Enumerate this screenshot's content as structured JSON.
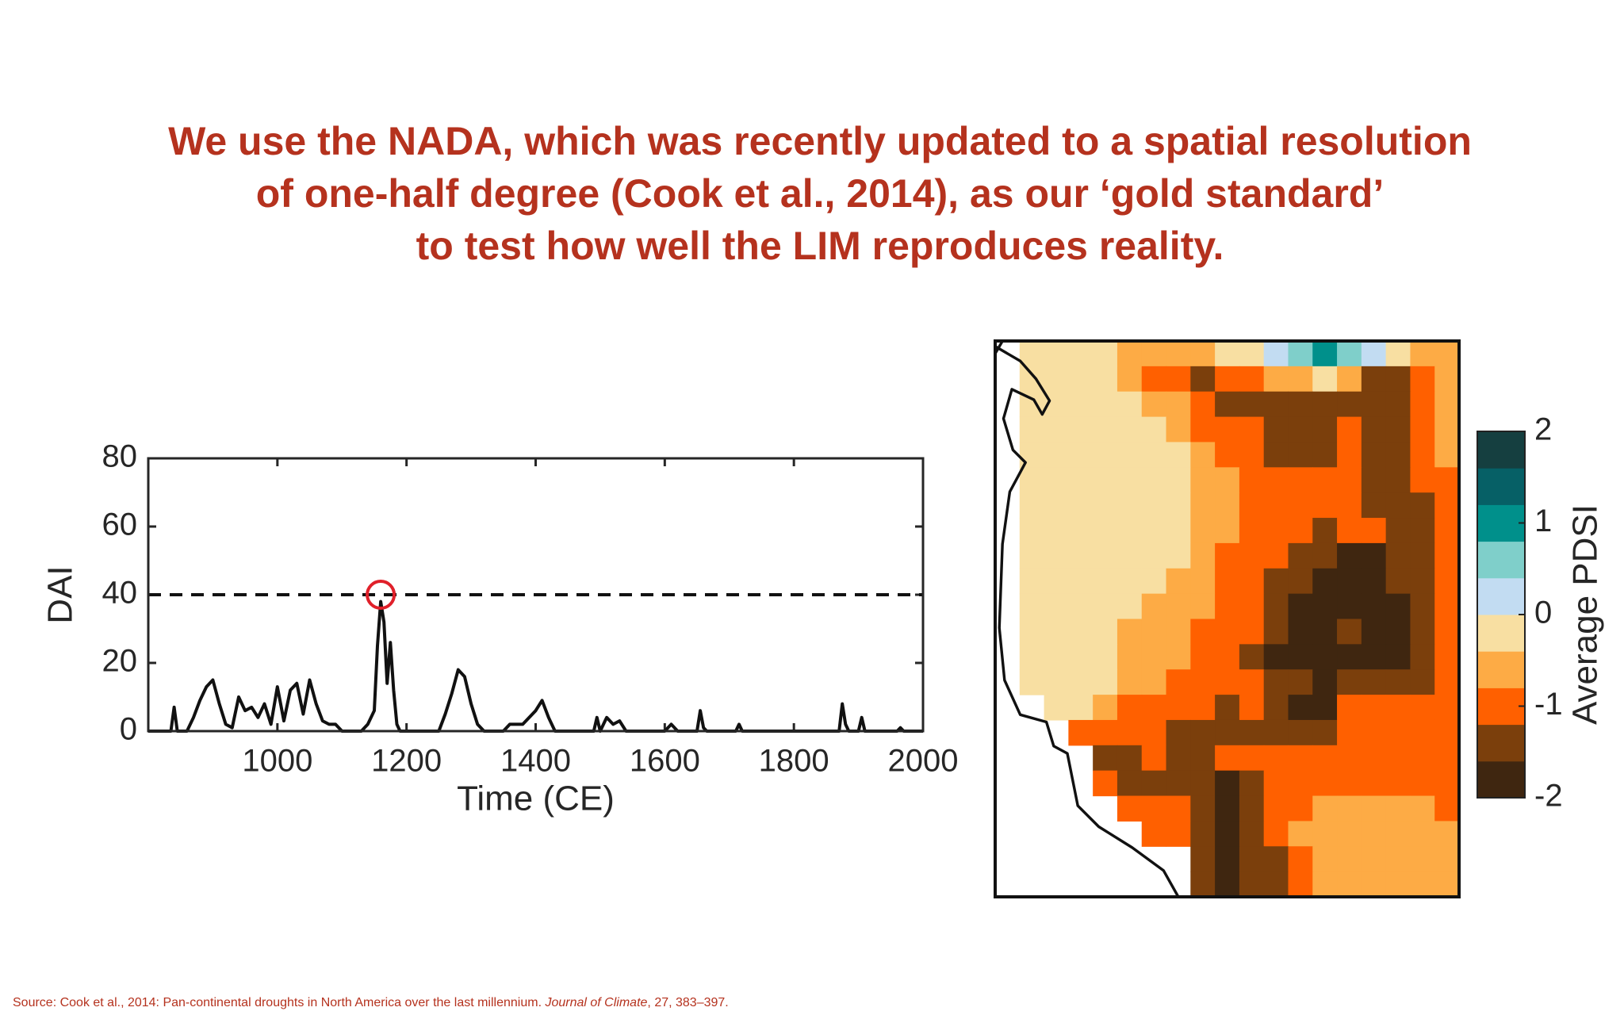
{
  "slide": {
    "heading": [
      "We use the NADA, which was recently updated to a spatial resolution",
      "of one-half degree (Cook et al., 2014), as our ‘gold standard’",
      "to test how well the LIM reproduces reality."
    ],
    "source": [
      "Source: Cook et al., 2014: Pan-continental droughts in North America over the last millennium. ",
      "Journal of Climate",
      ", 27, 383–397."
    ]
  },
  "chart_data": [
    {
      "type": "line",
      "xlabel": "Time (CE)",
      "ylabel": "DAI",
      "color": "#111111",
      "xlim": [
        800,
        2000
      ],
      "xticks": [
        1000,
        1200,
        1400,
        1600,
        1800,
        2000
      ],
      "ylim": [
        0,
        80
      ],
      "yticks": [
        0,
        20,
        40,
        60,
        80
      ],
      "threshold": 40,
      "highlight": {
        "x": 1160,
        "y": 40,
        "color": "#e0202a"
      },
      "x": [
        800,
        835,
        840,
        845,
        860,
        870,
        880,
        890,
        900,
        910,
        920,
        930,
        940,
        950,
        960,
        970,
        980,
        990,
        1000,
        1010,
        1020,
        1030,
        1040,
        1050,
        1060,
        1070,
        1080,
        1090,
        1100,
        1130,
        1140,
        1150,
        1155,
        1160,
        1165,
        1170,
        1175,
        1180,
        1185,
        1190,
        1250,
        1260,
        1270,
        1280,
        1290,
        1300,
        1310,
        1320,
        1350,
        1360,
        1380,
        1390,
        1400,
        1410,
        1420,
        1430,
        1490,
        1495,
        1500,
        1510,
        1520,
        1530,
        1540,
        1600,
        1610,
        1620,
        1650,
        1655,
        1660,
        1665,
        1710,
        1715,
        1720,
        1870,
        1875,
        1880,
        1885,
        1900,
        1905,
        1910,
        1960,
        1965,
        1970,
        2000
      ],
      "values": [
        0,
        0,
        7,
        0,
        0,
        4,
        9,
        13,
        15,
        8,
        2,
        1,
        10,
        6,
        7,
        4,
        8,
        2,
        13,
        3,
        12,
        14,
        5,
        15,
        8,
        3,
        2,
        2,
        0,
        0,
        2,
        6,
        25,
        38,
        32,
        14,
        26,
        12,
        2,
        0,
        0,
        5,
        11,
        18,
        16,
        8,
        2,
        0,
        0,
        2,
        2,
        4,
        6,
        9,
        4,
        0,
        0,
        4,
        0,
        4,
        2,
        3,
        0,
        0,
        2,
        0,
        0,
        6,
        1,
        0,
        0,
        2,
        0,
        0,
        8,
        2,
        0,
        0,
        4,
        0,
        0,
        1,
        0,
        0
      ]
    },
    {
      "type": "heatmap",
      "colorbar_label": "Average PDSI",
      "zlim": [
        -2,
        2
      ],
      "zticks": [
        -2,
        -1,
        0,
        1,
        2
      ],
      "colors": [
        "#3f2610",
        "#7b3f0c",
        "#ff6000",
        "#fdab45",
        "#f8dfa2",
        "#c2dcf2",
        "#7fcfca",
        "#00908b",
        "#066066",
        "#153f40"
      ],
      "z": [
        [
          null,
          -0.2,
          -0.2,
          -0.2,
          -0.2,
          -0.6,
          -0.6,
          -0.6,
          -0.6,
          -0.2,
          -0.2,
          0.2,
          0.6,
          1,
          0.6,
          0.2,
          -0.2,
          -0.6,
          -0.6
        ],
        [
          null,
          -0.2,
          -0.2,
          -0.2,
          -0.2,
          -0.6,
          -1,
          -1,
          -1.4,
          -1,
          -1,
          -0.6,
          -0.6,
          -0.2,
          -0.6,
          -1.4,
          -1.4,
          -1,
          -0.6
        ],
        [
          null,
          -0.2,
          -0.2,
          -0.2,
          -0.2,
          -0.2,
          -0.6,
          -0.6,
          -1,
          -1.4,
          -1.4,
          -1.4,
          -1.4,
          -1.4,
          -1.4,
          -1.4,
          -1.4,
          -1,
          -0.6
        ],
        [
          null,
          -0.2,
          -0.2,
          -0.2,
          -0.2,
          -0.2,
          -0.2,
          -0.6,
          -1,
          -1,
          -1,
          -1.4,
          -1.4,
          -1.4,
          -1,
          -1.4,
          -1.4,
          -1,
          -0.6
        ],
        [
          null,
          -0.2,
          -0.2,
          -0.2,
          -0.2,
          -0.2,
          -0.2,
          -0.2,
          -0.6,
          -1,
          -1,
          -1.4,
          -1.4,
          -1.4,
          -1,
          -1.4,
          -1.4,
          -1,
          -0.6
        ],
        [
          null,
          -0.2,
          -0.2,
          -0.2,
          -0.2,
          -0.2,
          -0.2,
          -0.2,
          -0.6,
          -0.6,
          -1,
          -1,
          -1,
          -1,
          -1,
          -1.4,
          -1.4,
          -1,
          -1
        ],
        [
          null,
          -0.2,
          -0.2,
          -0.2,
          -0.2,
          -0.2,
          -0.2,
          -0.2,
          -0.6,
          -0.6,
          -1,
          -1,
          -1,
          -1,
          -1,
          -1.4,
          -1.4,
          -1.4,
          -1
        ],
        [
          null,
          -0.2,
          -0.2,
          -0.2,
          -0.2,
          -0.2,
          -0.2,
          -0.2,
          -0.6,
          -0.6,
          -1,
          -1,
          -1,
          -1.4,
          -1,
          -1,
          -1.4,
          -1.4,
          -1
        ],
        [
          null,
          -0.2,
          -0.2,
          -0.2,
          -0.2,
          -0.2,
          -0.2,
          -0.2,
          -0.6,
          -1,
          -1,
          -1,
          -1.4,
          -1.4,
          -1.8,
          -1.8,
          -1.4,
          -1.4,
          -1
        ],
        [
          null,
          -0.2,
          -0.2,
          -0.2,
          -0.2,
          -0.2,
          -0.2,
          -0.6,
          -0.6,
          -1,
          -1,
          -1.4,
          -1.4,
          -1.8,
          -1.8,
          -1.8,
          -1.4,
          -1.4,
          -1
        ],
        [
          null,
          -0.2,
          -0.2,
          -0.2,
          -0.2,
          -0.2,
          -0.6,
          -0.6,
          -0.6,
          -1,
          -1,
          -1.4,
          -1.8,
          -1.8,
          -1.8,
          -1.8,
          -1.8,
          -1.4,
          -1
        ],
        [
          null,
          -0.2,
          -0.2,
          -0.2,
          -0.2,
          -0.6,
          -0.6,
          -0.6,
          -1,
          -1,
          -1,
          -1.4,
          -1.8,
          -1.8,
          -1.4,
          -1.8,
          -1.8,
          -1.4,
          -1
        ],
        [
          null,
          -0.2,
          -0.2,
          -0.2,
          -0.2,
          -0.6,
          -0.6,
          -0.6,
          -1,
          -1,
          -1.4,
          -1.8,
          -1.8,
          -1.8,
          -1.8,
          -1.8,
          -1.8,
          -1.4,
          -1
        ],
        [
          null,
          -0.2,
          -0.2,
          -0.2,
          -0.2,
          -0.6,
          -0.6,
          -1,
          -1,
          -1,
          -1,
          -1.4,
          -1.4,
          -1.8,
          -1.4,
          -1.4,
          -1.4,
          -1.4,
          -1
        ],
        [
          null,
          null,
          -0.2,
          -0.2,
          -0.6,
          -1,
          -1,
          -1,
          -1,
          -1.4,
          -1,
          -1.4,
          -1.8,
          -1.8,
          -1,
          -1,
          -1,
          -1,
          -1
        ],
        [
          null,
          null,
          null,
          -1,
          -1,
          -1,
          -1,
          -1.4,
          -1.4,
          -1.4,
          -1.4,
          -1.4,
          -1.4,
          -1.4,
          -1,
          -1,
          -1,
          -1,
          -1
        ],
        [
          null,
          null,
          null,
          null,
          -1.4,
          -1.4,
          -1,
          -1.4,
          -1.4,
          -1,
          -1,
          -1,
          -1,
          -1,
          -1,
          -1,
          -1,
          -1,
          -1
        ],
        [
          null,
          null,
          null,
          null,
          -1,
          -1.4,
          -1.4,
          -1.4,
          -1.4,
          -1.8,
          -1.4,
          -1,
          -1,
          -1,
          -1,
          -1,
          -1,
          -1,
          -1
        ],
        [
          null,
          null,
          null,
          null,
          null,
          -1,
          -1,
          -1,
          -1.4,
          -1.8,
          -1.4,
          -1,
          -1,
          -0.6,
          -0.6,
          -0.6,
          -0.6,
          -0.6,
          -1
        ],
        [
          null,
          null,
          null,
          null,
          null,
          null,
          -1,
          -1,
          -1.4,
          -1.8,
          -1.4,
          -1,
          -0.6,
          -0.6,
          -0.6,
          -0.6,
          -0.6,
          -0.6,
          -0.6
        ],
        [
          null,
          null,
          null,
          null,
          null,
          null,
          null,
          null,
          -1.4,
          -1.8,
          -1.4,
          -1.4,
          -1,
          -0.6,
          -0.6,
          -0.6,
          -0.6,
          -0.6,
          -0.6
        ],
        [
          null,
          null,
          null,
          null,
          null,
          null,
          null,
          null,
          -1.4,
          -1.8,
          -1.4,
          -1.4,
          -1,
          -0.6,
          -0.6,
          -0.6,
          -0.6,
          -0.6,
          -0.6
        ]
      ]
    }
  ]
}
